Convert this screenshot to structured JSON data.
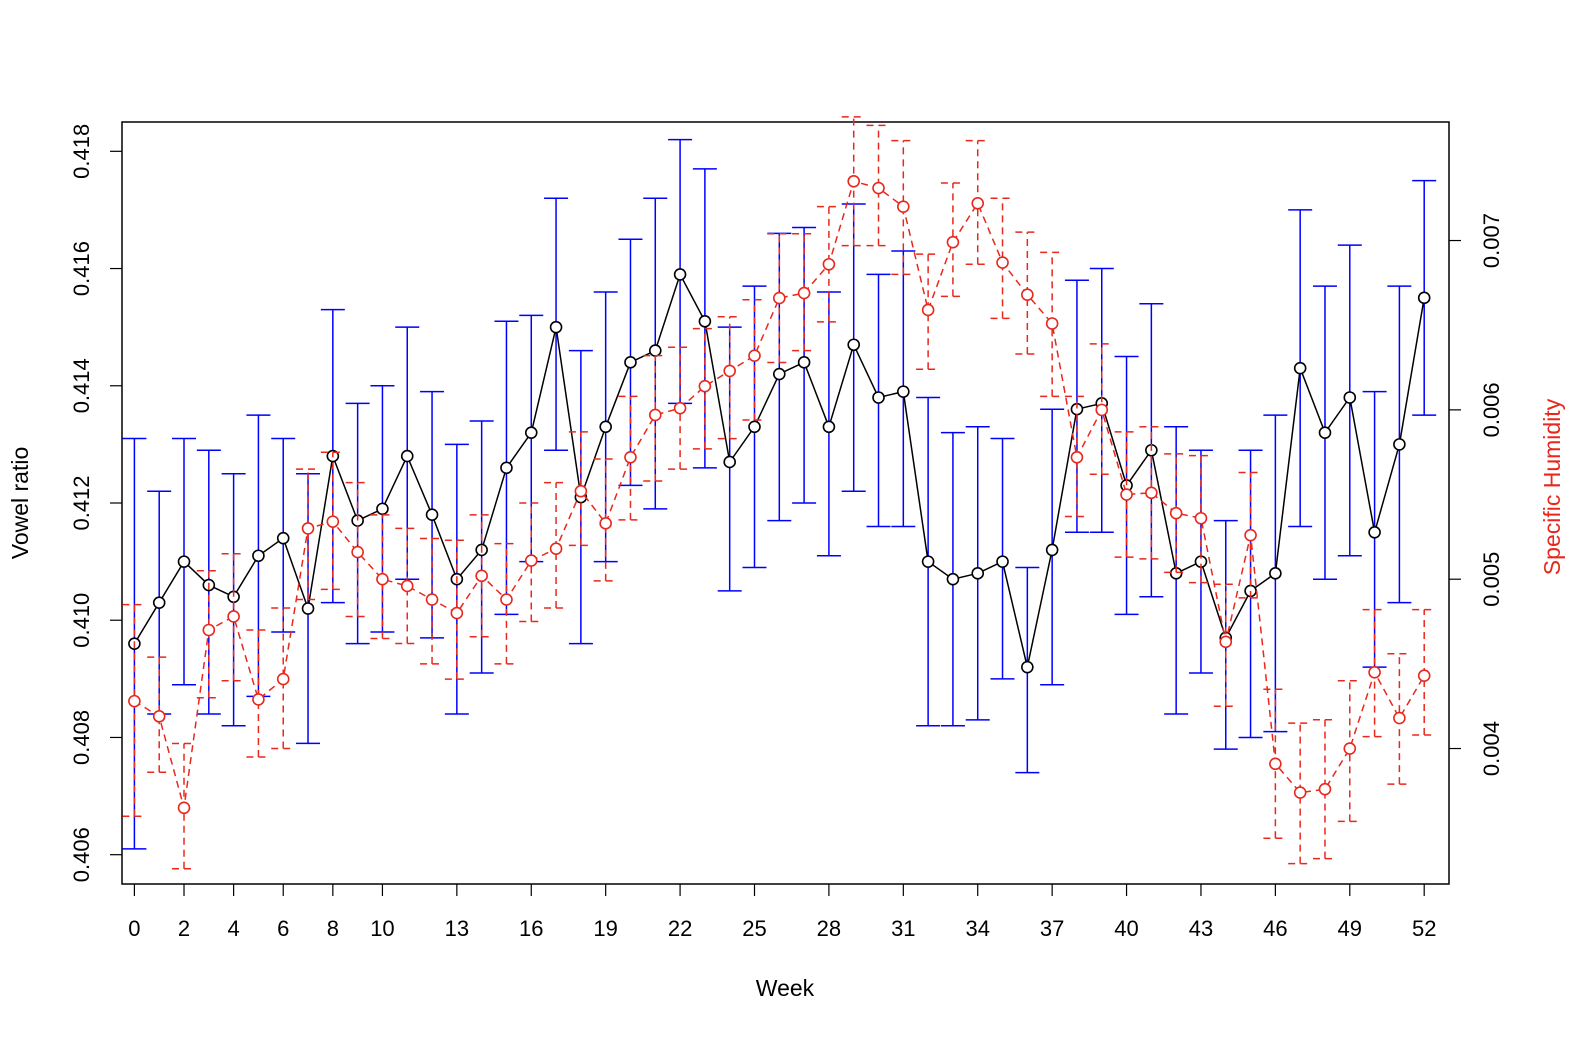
{
  "chart_data": {
    "type": "line",
    "title": "",
    "xlabel": "Week",
    "ylabel": "Vowel ratio",
    "y2label": "Specific Humidity",
    "xlim": [
      -0.5,
      53
    ],
    "ylim": [
      0.4055,
      0.4185
    ],
    "y2lim": [
      0.0032,
      0.0077
    ],
    "x_tick_labels": [
      "0",
      "2",
      "4",
      "6",
      "8",
      "10",
      "13",
      "16",
      "19",
      "22",
      "25",
      "28",
      "31",
      "34",
      "37",
      "40",
      "43",
      "46",
      "49",
      "52"
    ],
    "y_tick_labels": [
      "0.406",
      "0.408",
      "0.410",
      "0.412",
      "0.414",
      "0.416",
      "0.418"
    ],
    "y2_tick_labels": [
      "0.004",
      "0.005",
      "0.006",
      "0.007"
    ],
    "grid": false,
    "legend": "none",
    "series": [
      {
        "axis": "left",
        "color": "#000000",
        "errorbar_color": "#0000ff",
        "line_style": "solid",
        "marker": "open-circle",
        "x": [
          0,
          1,
          2,
          3,
          4,
          5,
          6,
          7,
          8,
          9,
          10,
          11,
          12,
          13,
          14,
          15,
          16,
          17,
          18,
          19,
          20,
          21,
          22,
          23,
          24,
          25,
          26,
          27,
          28,
          29,
          30,
          31,
          32,
          33,
          34,
          35,
          36,
          37,
          38,
          39,
          40,
          41,
          42,
          43,
          44,
          45,
          46,
          47,
          48,
          49,
          50,
          51,
          52
        ],
        "values": [
          0.4096,
          0.4103,
          0.411,
          0.4106,
          0.4104,
          0.4111,
          0.4114,
          0.4102,
          0.4128,
          0.4117,
          0.4119,
          0.4128,
          0.4118,
          0.4107,
          0.4112,
          0.4126,
          0.4132,
          0.415,
          0.4121,
          0.4133,
          0.4144,
          0.4146,
          0.4159,
          0.4151,
          0.4127,
          0.4133,
          0.4142,
          0.4144,
          0.4133,
          0.4147,
          0.4138,
          0.4139,
          0.411,
          0.4107,
          0.4108,
          0.411,
          0.4092,
          0.4112,
          0.4136,
          0.4137,
          0.4123,
          0.4129,
          0.4108,
          0.411,
          0.4097,
          0.4105,
          0.4108,
          0.4143,
          0.4132,
          0.4138,
          0.4115,
          0.413,
          0.4155
        ],
        "err_low": [
          0.4061,
          0.4084,
          0.4089,
          0.4084,
          0.4082,
          0.4087,
          0.4098,
          0.4079,
          0.4103,
          0.4096,
          0.4098,
          0.4107,
          0.4097,
          0.4084,
          0.4091,
          0.4101,
          0.411,
          0.4129,
          0.4096,
          0.411,
          0.4123,
          0.4119,
          0.4137,
          0.4126,
          0.4105,
          0.4109,
          0.4117,
          0.412,
          0.4111,
          0.4122,
          0.4116,
          0.4116,
          0.4082,
          0.4082,
          0.4083,
          0.409,
          0.4074,
          0.4089,
          0.4115,
          0.4115,
          0.4101,
          0.4104,
          0.4084,
          0.4091,
          0.4078,
          0.408,
          0.4081,
          0.4116,
          0.4107,
          0.4111,
          0.4092,
          0.4103,
          0.4135
        ],
        "err_high": [
          0.4131,
          0.4122,
          0.4131,
          0.4129,
          0.4125,
          0.4135,
          0.4131,
          0.4125,
          0.4153,
          0.4137,
          0.414,
          0.415,
          0.4139,
          0.413,
          0.4134,
          0.4151,
          0.4152,
          0.4172,
          0.4146,
          0.4156,
          0.4165,
          0.4172,
          0.4182,
          0.4177,
          0.415,
          0.4157,
          0.4166,
          0.4167,
          0.4156,
          0.4171,
          0.4159,
          0.4163,
          0.4138,
          0.4132,
          0.4133,
          0.4131,
          0.4109,
          0.4136,
          0.4158,
          0.416,
          0.4145,
          0.4154,
          0.4133,
          0.4129,
          0.4117,
          0.4129,
          0.4135,
          0.417,
          0.4157,
          0.4164,
          0.4139,
          0.4157,
          0.4175
        ]
      },
      {
        "axis": "right",
        "color": "#e8281c",
        "errorbar_color": "#e8281c",
        "line_style": "dashed",
        "marker": "open-circle",
        "x": [
          0,
          1,
          2,
          3,
          4,
          5,
          6,
          7,
          8,
          9,
          10,
          11,
          12,
          13,
          14,
          15,
          16,
          17,
          18,
          19,
          20,
          21,
          22,
          23,
          24,
          25,
          26,
          27,
          28,
          29,
          30,
          31,
          32,
          33,
          34,
          35,
          36,
          37,
          38,
          39,
          40,
          41,
          42,
          43,
          44,
          45,
          46,
          47,
          48,
          49,
          50,
          51,
          52
        ],
        "values": [
          0.00428,
          0.00419,
          0.00365,
          0.0047,
          0.00478,
          0.00429,
          0.00441,
          0.0053,
          0.00534,
          0.00516,
          0.005,
          0.00496,
          0.00488,
          0.0048,
          0.00502,
          0.00488,
          0.00511,
          0.00518,
          0.00552,
          0.00533,
          0.00572,
          0.00597,
          0.00601,
          0.00614,
          0.00623,
          0.00632,
          0.00666,
          0.00669,
          0.00686,
          0.00735,
          0.00731,
          0.0072,
          0.00659,
          0.00699,
          0.00722,
          0.00687,
          0.00668,
          0.00651,
          0.00572,
          0.006,
          0.0055,
          0.00551,
          0.00539,
          0.00536,
          0.00463,
          0.00526,
          0.00391,
          0.00374,
          0.00376,
          0.004,
          0.00445,
          0.00418,
          0.00443
        ],
        "err_low": [
          0.0036,
          0.00386,
          0.00329,
          0.0043,
          0.0044,
          0.00395,
          0.004,
          0.00488,
          0.00494,
          0.00478,
          0.00465,
          0.00462,
          0.0045,
          0.00441,
          0.00466,
          0.0045,
          0.00475,
          0.00483,
          0.0052,
          0.00499,
          0.00535,
          0.00558,
          0.00565,
          0.00577,
          0.00583,
          0.00594,
          0.00628,
          0.00635,
          0.00652,
          0.00697,
          0.00697,
          0.0068,
          0.00624,
          0.00667,
          0.00686,
          0.00654,
          0.00633,
          0.00608,
          0.00537,
          0.00562,
          0.00513,
          0.00512,
          0.00504,
          0.00498,
          0.00425,
          0.00489,
          0.00347,
          0.00332,
          0.00335,
          0.00357,
          0.00407,
          0.00379,
          0.00408
        ],
        "err_high": [
          0.00485,
          0.00454,
          0.00403,
          0.00505,
          0.00515,
          0.0047,
          0.00483,
          0.00565,
          0.00575,
          0.00557,
          0.00538,
          0.0053,
          0.00524,
          0.00523,
          0.00538,
          0.00521,
          0.00545,
          0.00557,
          0.00587,
          0.00571,
          0.00608,
          0.00632,
          0.00637,
          0.00648,
          0.00655,
          0.00665,
          0.00704,
          0.00704,
          0.0072,
          0.00773,
          0.00768,
          0.00759,
          0.00692,
          0.00734,
          0.00759,
          0.00725,
          0.00705,
          0.00693,
          0.00608,
          0.00639,
          0.00587,
          0.0059,
          0.00574,
          0.00573,
          0.00497,
          0.00563,
          0.00435,
          0.00415,
          0.00417,
          0.0044,
          0.00482,
          0.00456,
          0.00482
        ]
      }
    ]
  }
}
